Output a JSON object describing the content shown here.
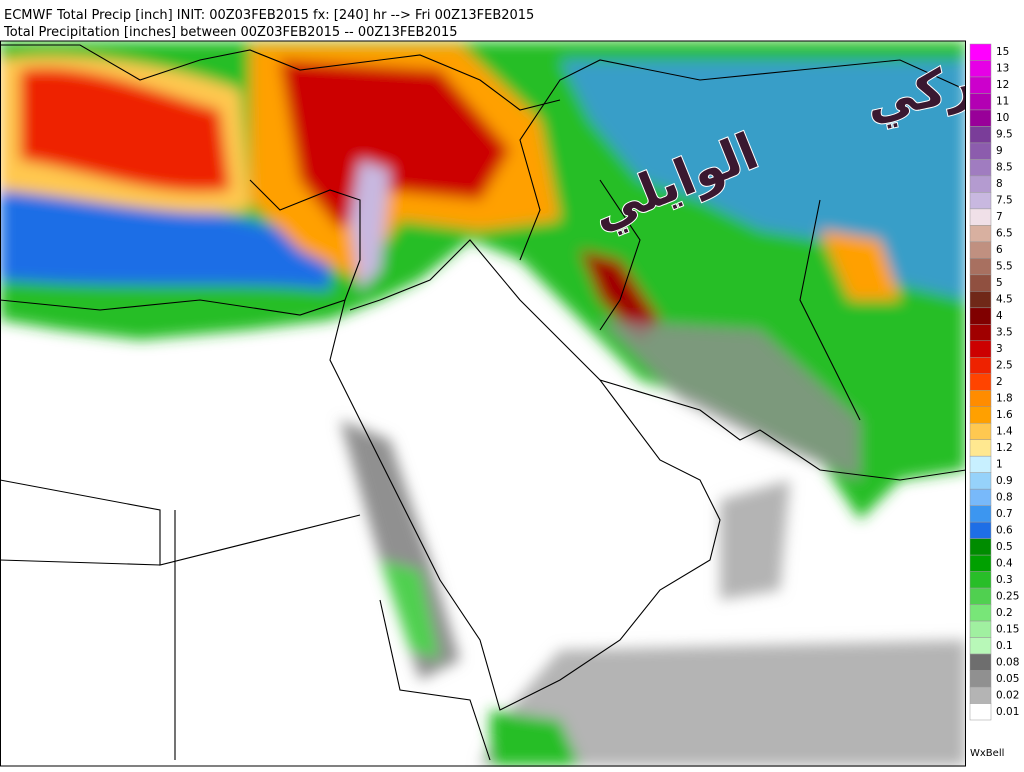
{
  "header": {
    "title": "ECMWF Total Precip [inch] INIT: 00Z03FEB2015 fx: [240] hr --> Fri 00Z13FEB2015",
    "subtitle": "Total Precipitation [inches] between 00Z03FEB2015 -- 00Z13FEB2015"
  },
  "legend": {
    "labels": [
      "15",
      "13",
      "12",
      "11",
      "10",
      "9.5",
      "9",
      "8.5",
      "8",
      "7.5",
      "7",
      "6.5",
      "6",
      "5.5",
      "5",
      "4.5",
      "4",
      "3.5",
      "3",
      "2.5",
      "2",
      "1.8",
      "1.6",
      "1.4",
      "1.2",
      "1",
      "0.9",
      "0.8",
      "0.7",
      "0.6",
      "0.5",
      "0.4",
      "0.3",
      "0.25",
      "0.2",
      "0.15",
      "0.1",
      "0.08",
      "0.05",
      "0.02",
      "0.01"
    ],
    "colors": [
      "#ff00ff",
      "#e600e6",
      "#cc00cc",
      "#b300b3",
      "#990099",
      "#7a3d99",
      "#8c5cad",
      "#a07cc0",
      "#b49bd0",
      "#c8b8e0",
      "#f0e0e8",
      "#d8b0a0",
      "#c09080",
      "#a87060",
      "#905040",
      "#702818",
      "#800000",
      "#a00000",
      "#cc0000",
      "#ee2200",
      "#ff4400",
      "#ff8c00",
      "#ffa000",
      "#ffc850",
      "#ffe890",
      "#c8f0ff",
      "#96d2fa",
      "#78b9fa",
      "#3c96f0",
      "#1e6ee6",
      "#008c00",
      "#00a000",
      "#28be28",
      "#50d050",
      "#78e678",
      "#a0f0a0",
      "#b8f8b8",
      "#6e6e6e",
      "#909090",
      "#b4b4b4",
      "#ffffff"
    ]
  },
  "watermark": {
    "line1": "تركي",
    "line2": "الوايلي"
  },
  "credit": "WxBell"
}
